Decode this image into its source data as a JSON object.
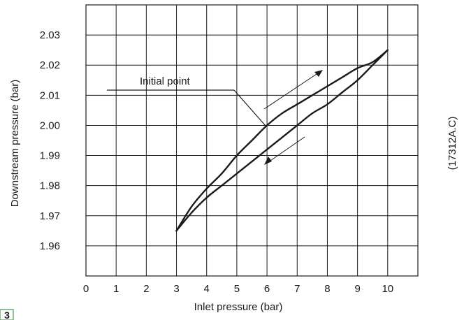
{
  "chart_data": {
    "type": "line",
    "title": "",
    "xlabel": "Inlet pressure (bar)",
    "ylabel": "Downstream pressure (bar)",
    "xlim": [
      0,
      11
    ],
    "ylim": [
      1.95,
      2.04
    ],
    "x_ticks": [
      0,
      1,
      2,
      3,
      4,
      5,
      6,
      7,
      8,
      9,
      10
    ],
    "x_tick_labels": [
      "0",
      "1",
      "2",
      "3",
      "4",
      "5",
      "6",
      "7",
      "8",
      "9",
      "10"
    ],
    "y_ticks": [
      1.96,
      1.97,
      1.98,
      1.99,
      2.0,
      2.01,
      2.02,
      2.03
    ],
    "y_tick_labels": [
      "1.96",
      "1.97",
      "1.98",
      "1.99",
      "2.00",
      "2.01",
      "2.02",
      "2.03"
    ],
    "grid": true,
    "series": [
      {
        "direction": "increasing",
        "x": [
          3,
          3.5,
          4,
          4.5,
          5,
          5.5,
          6,
          6.5,
          7,
          7.5,
          8,
          8.5,
          9,
          9.5,
          10
        ],
        "y": [
          1.965,
          1.973,
          1.979,
          1.984,
          1.99,
          1.995,
          2.0,
          2.004,
          2.007,
          2.01,
          2.013,
          2.016,
          2.019,
          2.021,
          2.025
        ]
      },
      {
        "direction": "decreasing",
        "x": [
          10,
          9.5,
          9,
          8.5,
          8,
          7.5,
          7,
          6.5,
          6,
          5.5,
          5,
          4.5,
          4,
          3.5,
          3
        ],
        "y": [
          2.025,
          2.02,
          2.015,
          2.011,
          2.007,
          2.004,
          2.0,
          1.996,
          1.992,
          1.988,
          1.984,
          1.98,
          1.976,
          1.971,
          1.965
        ]
      }
    ],
    "annotations": [
      {
        "text": "Initial point",
        "x": 6,
        "y": 2.0
      }
    ],
    "figure_id": "(17312A.C)",
    "badge": "3"
  }
}
